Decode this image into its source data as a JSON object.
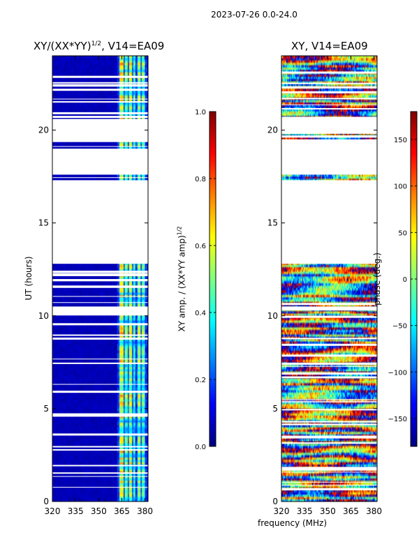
{
  "suptitle": "2023-07-26 0.0-24.0",
  "colors": {
    "colormap": "jet",
    "gap": "#ffffff",
    "frame": "#000000"
  },
  "chart_data": [
    {
      "type": "heatmap",
      "title_prefix": "XY/(XX*YY)",
      "title_sup": "1/2",
      "title_suffix": ", V14=EA09",
      "xlabel": "",
      "ylabel": "UT (hours)",
      "xlim": [
        320,
        382
      ],
      "ylim": [
        0,
        24
      ],
      "xticks": [
        320,
        335,
        350,
        365,
        380
      ],
      "yticks": [
        0,
        5,
        10,
        15,
        20
      ],
      "colorbar": {
        "label_prefix": "XY amp. / (XX*YY amp)",
        "label_sup": "1/2",
        "range": [
          0.0,
          1.0
        ],
        "ticks": [
          0.0,
          0.2,
          0.4,
          0.6,
          0.8,
          1.0
        ],
        "tick_labels": [
          "0.0",
          "0.2",
          "0.4",
          "0.6",
          "0.8",
          "1.0"
        ]
      },
      "data_gaps_hours": [
        [
          20.6,
          19.4
        ],
        [
          19.0,
          17.6
        ],
        [
          17.3,
          12.8
        ],
        [
          10.5,
          10.1
        ]
      ],
      "value_pattern": {
        "background": 0.03,
        "bright_channels_mhz": [
          [
            363.5,
            366.5,
            0.6
          ],
          [
            367,
            369,
            0.45
          ],
          [
            370,
            372,
            0.55
          ],
          [
            372.5,
            374,
            0.4
          ],
          [
            375.5,
            377.5,
            0.5
          ],
          [
            378.5,
            380.5,
            0.45
          ]
        ]
      }
    },
    {
      "type": "heatmap",
      "title": "XY, V14=EA09",
      "xlabel": "frequency (MHz)",
      "ylabel": "",
      "xlim": [
        320,
        382
      ],
      "ylim": [
        0,
        24
      ],
      "xticks": [
        320,
        335,
        350,
        365,
        380
      ],
      "yticks": [
        0,
        5,
        10,
        15,
        20
      ],
      "colorbar": {
        "label": "phase (deg.)",
        "range": [
          -180,
          180
        ],
        "ticks": [
          -150,
          -100,
          -50,
          0,
          50,
          100,
          150
        ],
        "tick_labels": [
          "−150",
          "−100",
          "−50",
          "0",
          "50",
          "100",
          "150"
        ]
      },
      "data_gaps_hours": [
        [
          20.6,
          19.8
        ],
        [
          19.5,
          17.6
        ],
        [
          17.3,
          12.8
        ],
        [
          10.5,
          10.3
        ]
      ],
      "value_pattern": "phase wraps across full range; mostly random with horizontal banding"
    }
  ]
}
